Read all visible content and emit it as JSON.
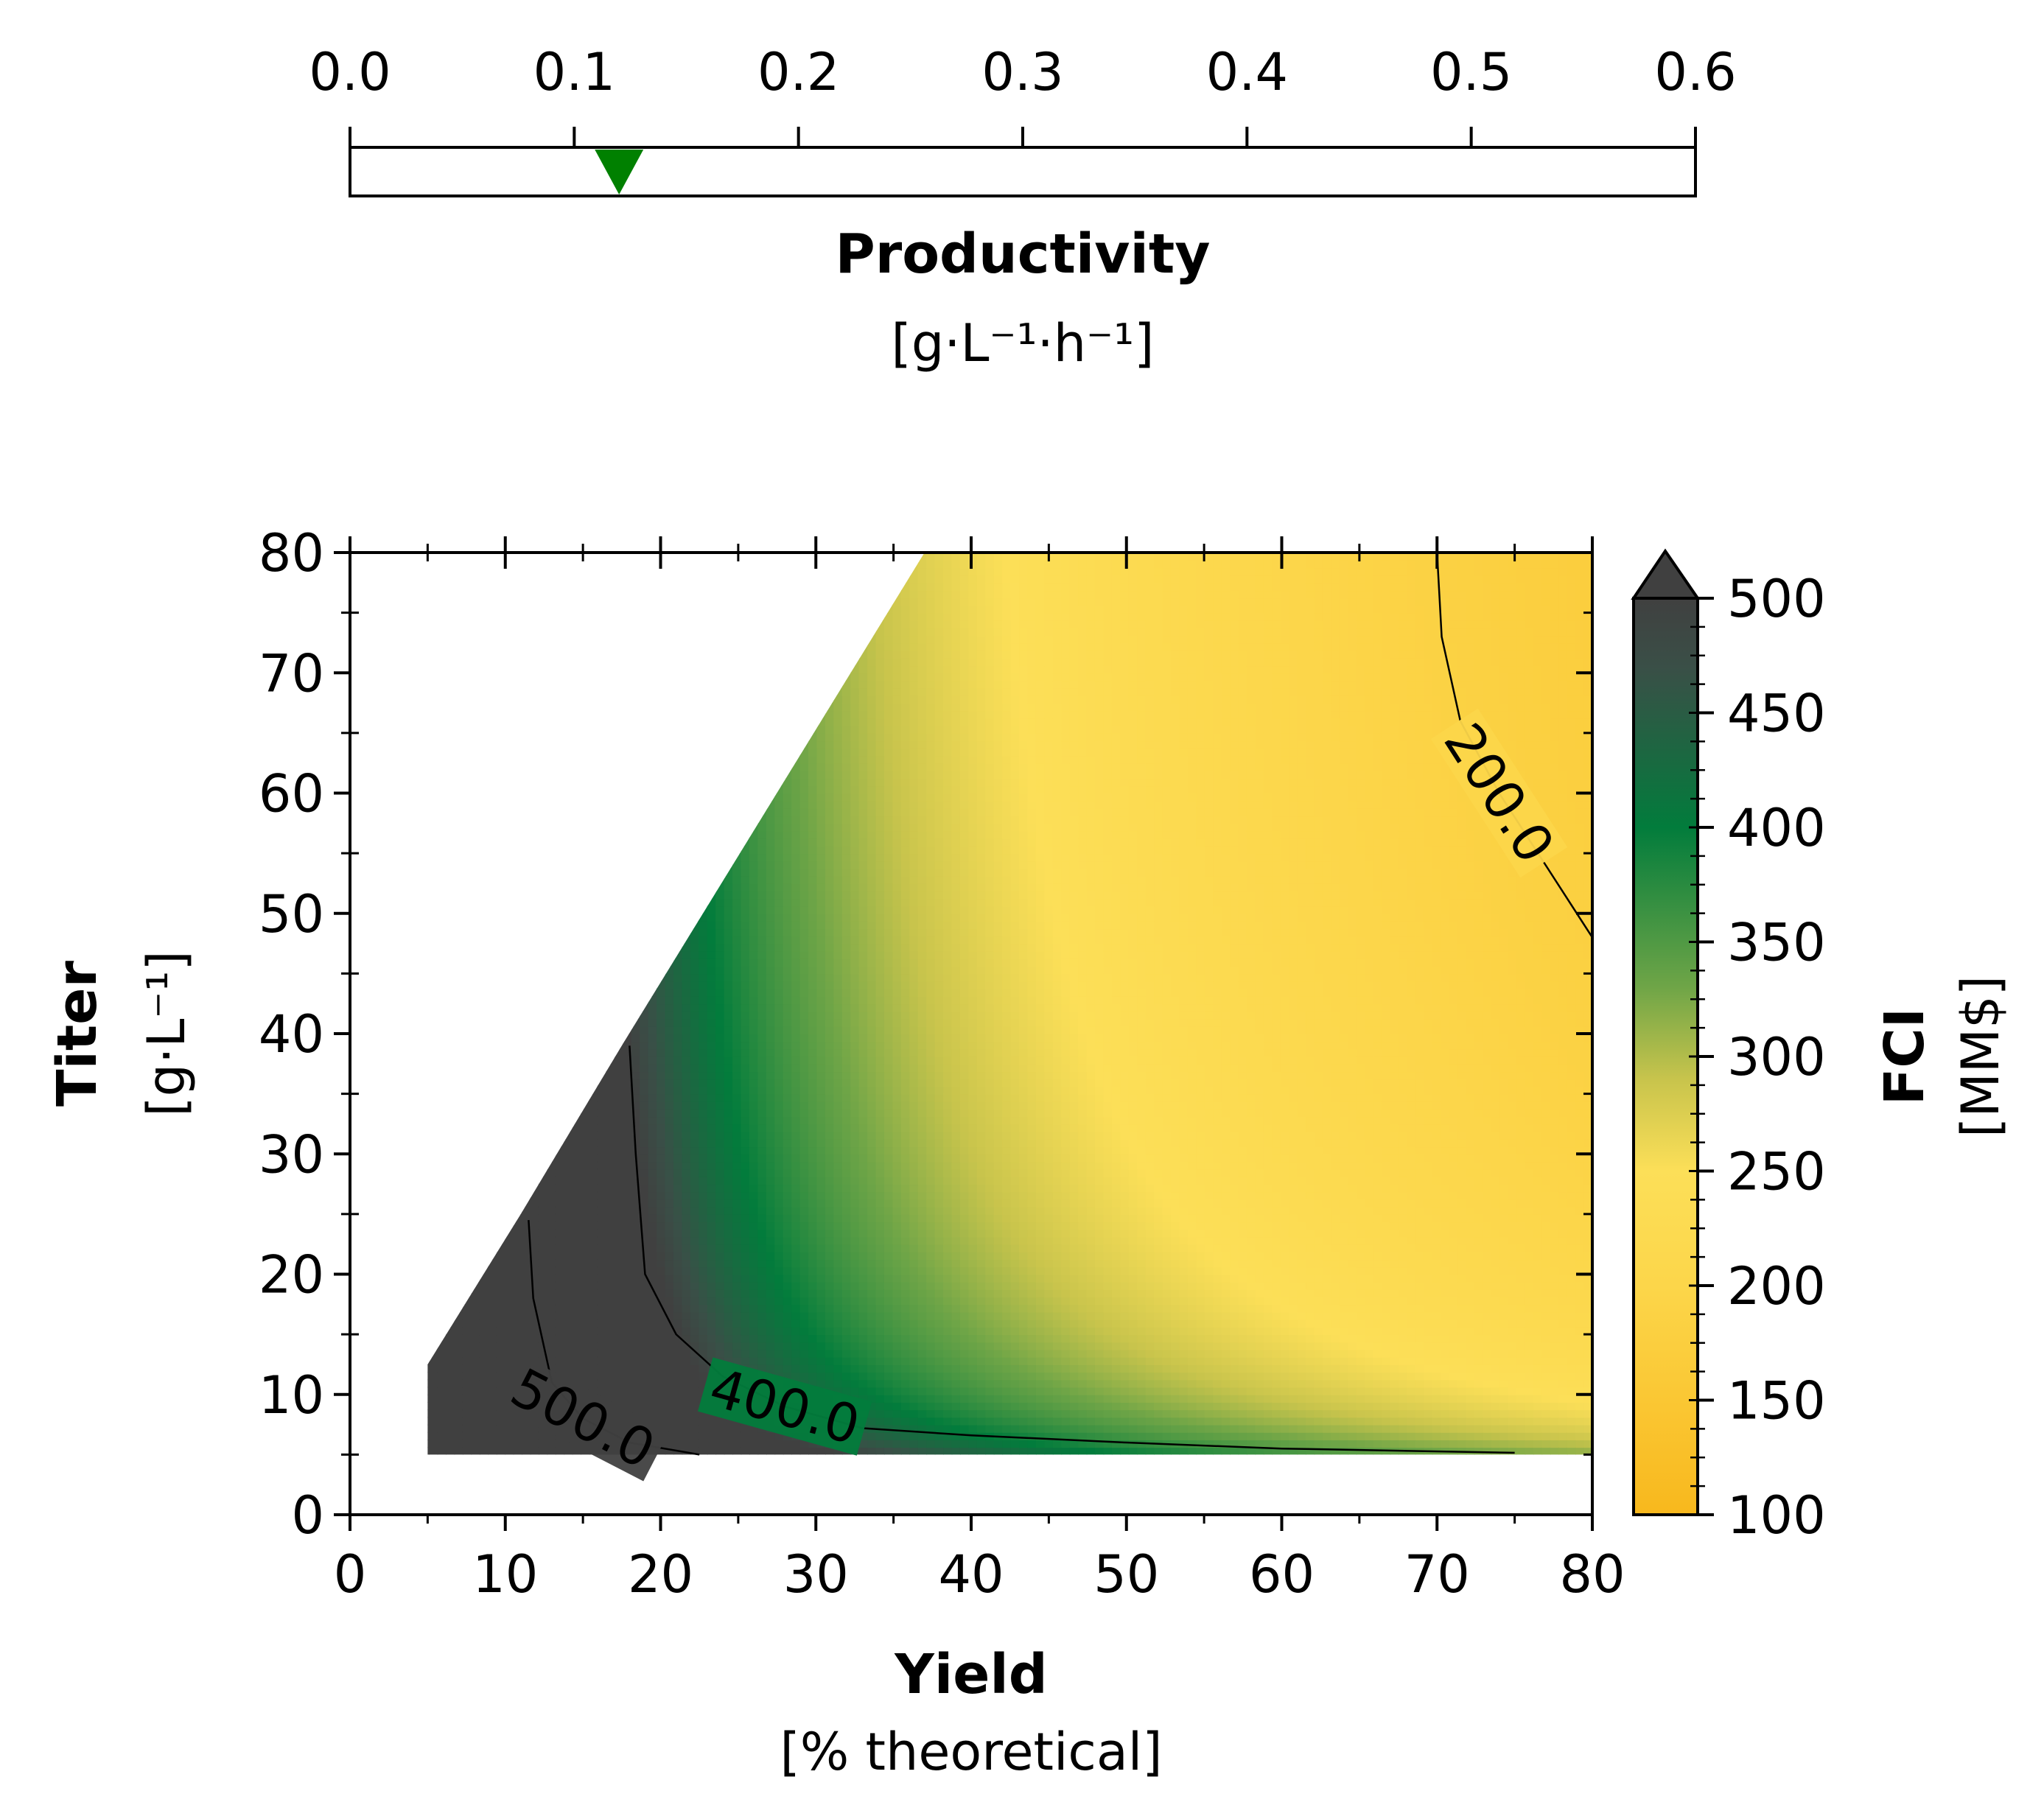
{
  "productivity_axis": {
    "title": "Productivity",
    "unit": "[g·L⁻¹·h⁻¹]",
    "range": [
      0.0,
      0.6
    ],
    "ticks": [
      "0.0",
      "0.1",
      "0.2",
      "0.3",
      "0.4",
      "0.5",
      "0.6"
    ],
    "marker_value": 0.12,
    "marker_color": "#008000"
  },
  "chart_data": {
    "type": "heatmap",
    "subtype": "filled contour",
    "xlabel": "Yield",
    "xunit": "[% theoretical]",
    "ylabel": "Titer",
    "yunit": "[g·L⁻¹]",
    "xlim": [
      0,
      80
    ],
    "ylim": [
      0,
      80
    ],
    "xticks": [
      "0",
      "10",
      "20",
      "30",
      "40",
      "50",
      "60",
      "70",
      "80"
    ],
    "yticks": [
      "0",
      "10",
      "20",
      "30",
      "40",
      "50",
      "60",
      "70",
      "80"
    ],
    "colorbar": {
      "label": "FCI",
      "unit": "[MM$]",
      "range": [
        100,
        500
      ],
      "extend": "max",
      "ticks": [
        "100",
        "150",
        "200",
        "250",
        "300",
        "350",
        "400",
        "450",
        "500"
      ],
      "colors": [
        "#f8b81d",
        "#fcd64a",
        "#fcdf58",
        "#c8c44c",
        "#6fa547",
        "#027c3c",
        "#3a4f47",
        "#404040"
      ],
      "stops": [
        100,
        200,
        250,
        290,
        330,
        400,
        470,
        500
      ]
    },
    "feasible_region": {
      "titer_min": 5,
      "boundary": [
        [
          5,
          12.5
        ],
        [
          5,
          5
        ],
        [
          80,
          5
        ],
        [
          80,
          80
        ],
        [
          37,
          80
        ],
        [
          17.5,
          39
        ],
        [
          11,
          25
        ]
      ]
    },
    "contour_lines": [
      {
        "level": 500,
        "label": "500.0",
        "points": [
          [
            11.5,
            24.5
          ],
          [
            11.8,
            18
          ],
          [
            13,
            11
          ],
          [
            15,
            8
          ],
          [
            18,
            6
          ],
          [
            22.5,
            5
          ]
        ]
      },
      {
        "level": 400,
        "label": "400.0",
        "points": [
          [
            18,
            39
          ],
          [
            18.4,
            30
          ],
          [
            19,
            20
          ],
          [
            21,
            15
          ],
          [
            24,
            11.5
          ],
          [
            28,
            9
          ],
          [
            33,
            7.2
          ],
          [
            40,
            6.6
          ],
          [
            50,
            6
          ],
          [
            60,
            5.5
          ],
          [
            75,
            5.15
          ]
        ]
      },
      {
        "level": 200,
        "label": "200.0",
        "points": [
          [
            70,
            80
          ],
          [
            70.3,
            73
          ],
          [
            71.5,
            66
          ],
          [
            74,
            60
          ],
          [
            76.5,
            55
          ],
          [
            78.5,
            51
          ],
          [
            80,
            48
          ]
        ]
      }
    ]
  }
}
